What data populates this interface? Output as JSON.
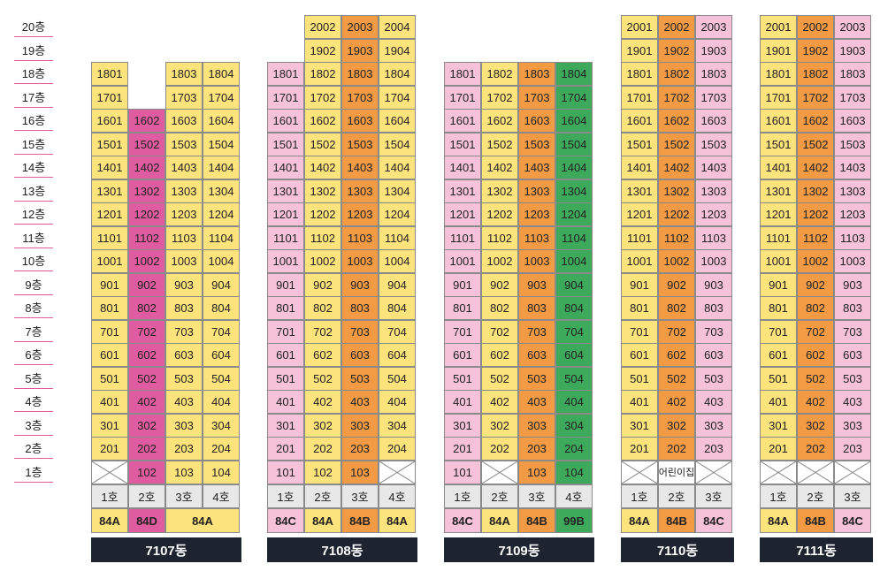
{
  "floor_labels": [
    "20층",
    "19층",
    "18층",
    "17층",
    "16층",
    "15층",
    "14층",
    "13층",
    "12층",
    "11층",
    "10층",
    "9층",
    "8층",
    "7층",
    "6층",
    "5층",
    "4층",
    "3층",
    "2층",
    "1층"
  ],
  "colors": {
    "yellow": "#fde37b",
    "pink": "#f6c2d9",
    "orange": "#f39a45",
    "green": "#3daa5b",
    "magenta": "#e05ca0",
    "empty": "#ffffff",
    "ho": "#e8e8e8",
    "label_bg": "#1d2430"
  },
  "buildings": [
    {
      "name": "7107동",
      "columns": [
        {
          "ho": "1호",
          "max_floor": 18,
          "color": "yellow",
          "first_floor": "cross",
          "extra_empty_floors": []
        },
        {
          "ho": "2호",
          "max_floor": 16,
          "color": "magenta",
          "first_floor": "unit",
          "extra_empty_floors": []
        },
        {
          "ho": "3호",
          "max_floor": 18,
          "color": "yellow",
          "first_floor": "unit",
          "extra_empty_floors": []
        },
        {
          "ho": "4호",
          "max_floor": 18,
          "color": "yellow",
          "first_floor": "unit",
          "extra_empty_floors": []
        }
      ],
      "types": [
        {
          "label": "84A",
          "span": 1,
          "color": "yellow"
        },
        {
          "label": "84D",
          "span": 1,
          "color": "magenta"
        },
        {
          "label": "84A",
          "span": 2,
          "color": "yellow"
        }
      ]
    },
    {
      "name": "7108동",
      "columns": [
        {
          "ho": "1호",
          "max_floor": 18,
          "color": "pink",
          "first_floor": "unit"
        },
        {
          "ho": "2호",
          "max_floor": 20,
          "color": "yellow",
          "first_floor": "unit"
        },
        {
          "ho": "3호",
          "max_floor": 20,
          "color": "orange",
          "first_floor": "unit"
        },
        {
          "ho": "4호",
          "max_floor": 20,
          "color": "yellow",
          "first_floor": "cross"
        }
      ],
      "types": [
        {
          "label": "84C",
          "span": 1,
          "color": "pink"
        },
        {
          "label": "84A",
          "span": 1,
          "color": "yellow"
        },
        {
          "label": "84B",
          "span": 1,
          "color": "orange"
        },
        {
          "label": "84A",
          "span": 1,
          "color": "yellow"
        }
      ]
    },
    {
      "name": "7109동",
      "columns": [
        {
          "ho": "1호",
          "max_floor": 18,
          "color": "pink",
          "first_floor": "unit"
        },
        {
          "ho": "2호",
          "max_floor": 18,
          "color": "yellow",
          "first_floor": "cross"
        },
        {
          "ho": "3호",
          "max_floor": 18,
          "color": "orange",
          "first_floor": "unit"
        },
        {
          "ho": "4호",
          "max_floor": 18,
          "color": "green",
          "first_floor": "unit"
        }
      ],
      "types": [
        {
          "label": "84C",
          "span": 1,
          "color": "pink"
        },
        {
          "label": "84A",
          "span": 1,
          "color": "yellow"
        },
        {
          "label": "84B",
          "span": 1,
          "color": "orange"
        },
        {
          "label": "99B",
          "span": 1,
          "color": "green"
        }
      ]
    },
    {
      "name": "7110동",
      "columns": [
        {
          "ho": "1호",
          "max_floor": 20,
          "color": "yellow",
          "first_floor": "cross"
        },
        {
          "ho": "2호",
          "max_floor": 20,
          "color": "orange",
          "first_floor": "daycare"
        },
        {
          "ho": "3호",
          "max_floor": 20,
          "color": "pink",
          "first_floor": "cross"
        }
      ],
      "types": [
        {
          "label": "84A",
          "span": 1,
          "color": "yellow"
        },
        {
          "label": "84B",
          "span": 1,
          "color": "orange"
        },
        {
          "label": "84C",
          "span": 1,
          "color": "pink"
        }
      ]
    },
    {
      "name": "7111동",
      "columns": [
        {
          "ho": "1호",
          "max_floor": 20,
          "color": "yellow",
          "first_floor": "cross"
        },
        {
          "ho": "2호",
          "max_floor": 20,
          "color": "orange",
          "first_floor": "cross"
        },
        {
          "ho": "3호",
          "max_floor": 20,
          "color": "pink",
          "first_floor": "cross"
        }
      ],
      "types": [
        {
          "label": "84A",
          "span": 1,
          "color": "yellow"
        },
        {
          "label": "84B",
          "span": 1,
          "color": "orange"
        },
        {
          "label": "84C",
          "span": 1,
          "color": "pink"
        }
      ]
    }
  ],
  "daycare_label": "어린이집"
}
